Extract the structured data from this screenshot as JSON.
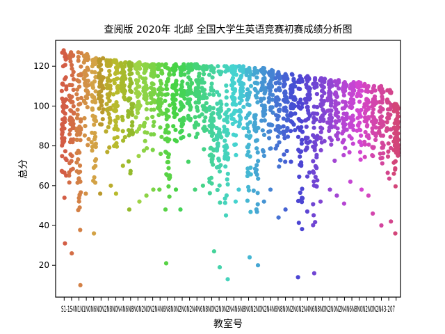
{
  "chart_data": {
    "type": "scatter",
    "subtype": "strip",
    "title": "查阅版 2020年 北邮  全国大学生英语竞赛初赛成绩分析图",
    "xlabel": "教室号",
    "ylabel": "总分",
    "ylim": [
      4,
      133
    ],
    "yticks": [
      20,
      40,
      60,
      80,
      100,
      120
    ],
    "grid": false,
    "legend": "none",
    "categories": [
      "S1-104",
      "S1-105",
      "N104",
      "N105",
      "N108",
      "N202",
      "N204",
      "N206",
      "N208",
      "N210",
      "N212",
      "N214",
      "N216",
      "N218",
      "N220",
      "N302",
      "N304",
      "N306",
      "N308",
      "N310",
      "N312",
      "N314",
      "N316",
      "N318",
      "N320",
      "N402",
      "N404",
      "N406",
      "N408",
      "N410",
      "N412",
      "N414",
      "N416",
      "N418",
      "N420",
      "N502",
      "N504",
      "N506",
      "N508",
      "N510",
      "N512",
      "N514",
      "N516",
      "N518",
      "N520",
      "N602",
      "N604",
      "N606",
      "N608",
      "N610",
      "N612",
      "N614",
      "N616",
      "N618",
      "N620",
      "N702",
      "N704",
      "N706",
      "N708",
      "N710",
      "N712",
      "N714",
      "N716",
      "N718",
      "N720",
      "3-207"
    ],
    "xtick_text": "S1-1S4N1N1N0N6N0N2N8N0N4N6N8N0N2N0N2N4N6N8N0N2N0N2N4N6N8N0N2N0N2N4N6N8N0N2N0N2N4N6N8N0N2N0N2N4N6N8N0N2N0N2N4N6N8N0N2N0N2N43-207",
    "series_stats": [
      {
        "max": 128,
        "min": 31,
        "count": 60
      },
      {
        "max": 127,
        "min": 26,
        "count": 56
      },
      {
        "max": 127,
        "min": 10,
        "count": 60
      },
      {
        "max": 126,
        "min": 56,
        "count": 52
      },
      {
        "max": 124,
        "min": 36,
        "count": 56
      },
      {
        "max": 124,
        "min": 56,
        "count": 50
      },
      {
        "max": 123,
        "min": 60,
        "count": 48
      },
      {
        "max": 123,
        "min": 56,
        "count": 50
      },
      {
        "max": 122,
        "min": 70,
        "count": 44
      },
      {
        "max": 122,
        "min": 48,
        "count": 50
      },
      {
        "max": 122,
        "min": 52,
        "count": 50
      },
      {
        "max": 121,
        "min": 55,
        "count": 48
      },
      {
        "max": 121,
        "min": 58,
        "count": 48
      },
      {
        "max": 121,
        "min": 58,
        "count": 46
      },
      {
        "max": 121,
        "min": 21,
        "count": 50
      },
      {
        "max": 121,
        "min": 58,
        "count": 46
      },
      {
        "max": 121,
        "min": 48,
        "count": 50
      },
      {
        "max": 121,
        "min": 72,
        "count": 44
      },
      {
        "max": 121,
        "min": 58,
        "count": 48
      },
      {
        "max": 120,
        "min": 60,
        "count": 46
      },
      {
        "max": 120,
        "min": 27,
        "count": 52
      },
      {
        "max": 120,
        "min": 19,
        "count": 50
      },
      {
        "max": 120,
        "min": 13,
        "count": 52
      },
      {
        "max": 120,
        "min": 52,
        "count": 48
      },
      {
        "max": 120,
        "min": 58,
        "count": 46
      },
      {
        "max": 119,
        "min": 24,
        "count": 50
      },
      {
        "max": 119,
        "min": 20,
        "count": 50
      },
      {
        "max": 119,
        "min": 52,
        "count": 46
      },
      {
        "max": 118,
        "min": 58,
        "count": 44
      },
      {
        "max": 117,
        "min": 44,
        "count": 46
      },
      {
        "max": 116,
        "min": 48,
        "count": 46
      },
      {
        "max": 116,
        "min": 72,
        "count": 40
      },
      {
        "max": 115,
        "min": 14,
        "count": 50
      },
      {
        "max": 115,
        "min": 47,
        "count": 46
      },
      {
        "max": 114,
        "min": 16,
        "count": 48
      },
      {
        "max": 114,
        "min": 52,
        "count": 44
      },
      {
        "max": 113,
        "min": 58,
        "count": 42
      },
      {
        "max": 113,
        "min": 55,
        "count": 42
      },
      {
        "max": 112,
        "min": 51,
        "count": 42
      },
      {
        "max": 112,
        "min": 62,
        "count": 40
      },
      {
        "max": 112,
        "min": 58,
        "count": 40
      },
      {
        "max": 111,
        "min": 55,
        "count": 40
      },
      {
        "max": 110,
        "min": 46,
        "count": 42
      },
      {
        "max": 110,
        "min": 40,
        "count": 44
      },
      {
        "max": 108,
        "min": 42,
        "count": 30
      },
      {
        "max": 101,
        "min": 36,
        "count": 70
      }
    ],
    "note": "Strip plot; each dot is one student's total score in a classroom. 46 coloured columns drawn (husl palette red→orange→green→teal→blue→purple→pink); column tick labels overlap into an unreadable run."
  }
}
